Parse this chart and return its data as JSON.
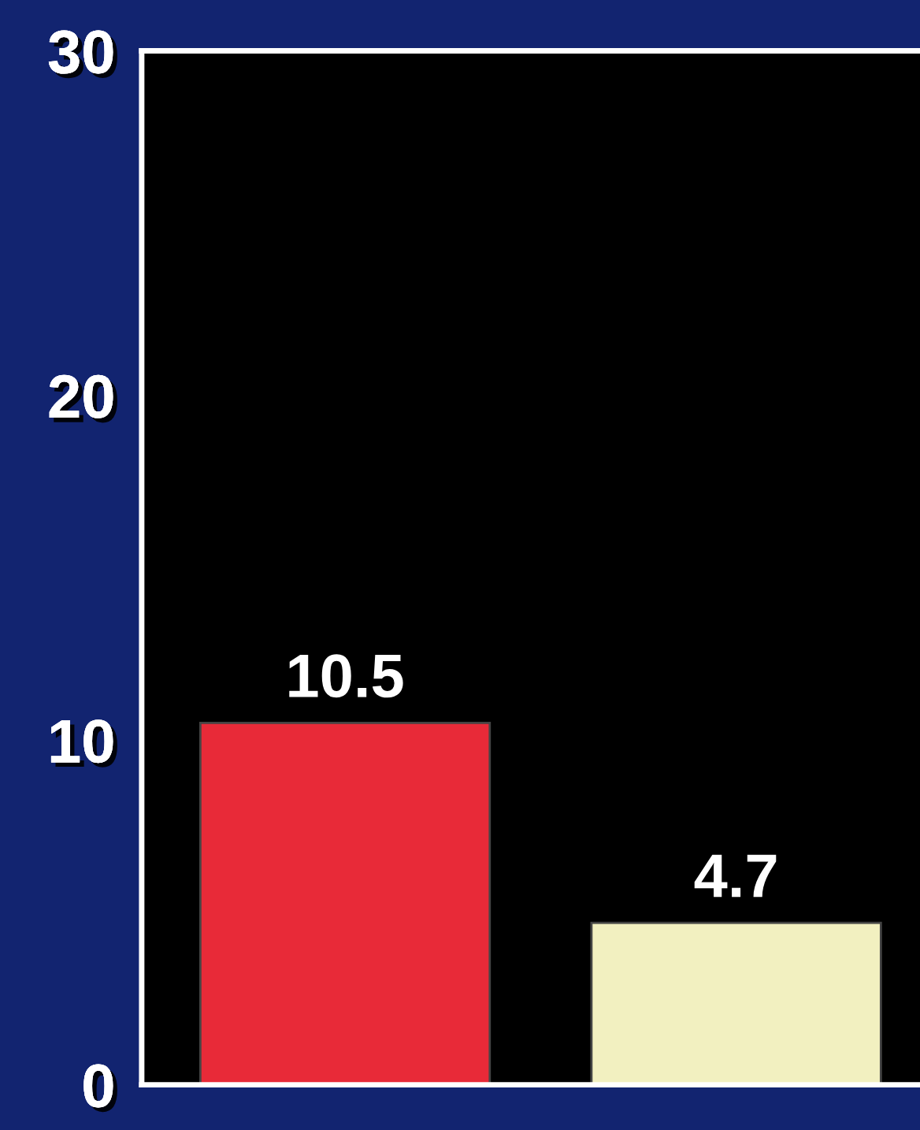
{
  "chart_data": {
    "type": "bar",
    "categories": [
      null,
      null
    ],
    "values": [
      10.5,
      4.7
    ],
    "colors": [
      "#e82a38",
      "#f2f0c0"
    ],
    "ylim": [
      0,
      30
    ],
    "yticks": [
      0,
      10,
      20,
      30
    ],
    "data_labels": true,
    "grid": false,
    "legend": false
  }
}
